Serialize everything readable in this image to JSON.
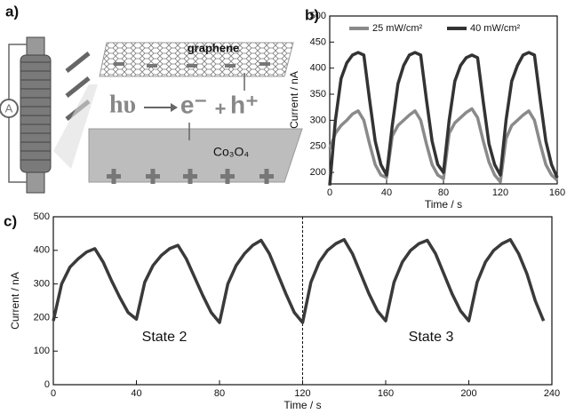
{
  "diagram": {
    "label": "a)",
    "ammeter": "A",
    "sheet": "graphene",
    "photon": "hυ",
    "electron": "e⁻",
    "plus": "+",
    "hole": "h⁺",
    "substrate": "Co₃O₄"
  },
  "chart_data": [
    {
      "type": "line",
      "label": "b)",
      "xlabel": "Time / s",
      "ylabel": "Current / nA",
      "xlim": [
        0,
        160
      ],
      "xticks": [
        0,
        40,
        80,
        120,
        160
      ],
      "ylim": [
        178,
        500
      ],
      "yticks": [
        200,
        250,
        300,
        350,
        400,
        450,
        500
      ],
      "x": [
        0,
        4,
        8,
        12,
        16,
        20,
        24,
        28,
        32,
        36,
        40,
        44,
        48,
        52,
        56,
        60,
        64,
        68,
        72,
        76,
        80,
        84,
        88,
        92,
        96,
        100,
        104,
        108,
        112,
        116,
        120,
        124,
        128,
        132,
        136,
        140,
        144,
        148,
        152,
        156,
        160
      ],
      "series": [
        {
          "name": "25 mW/cm²",
          "color": "#8a8a8a",
          "values": [
            245,
            275,
            290,
            300,
            312,
            318,
            300,
            255,
            215,
            195,
            190,
            270,
            290,
            300,
            310,
            318,
            300,
            255,
            215,
            195,
            188,
            275,
            295,
            305,
            315,
            322,
            305,
            260,
            220,
            195,
            182,
            265,
            290,
            300,
            310,
            318,
            300,
            255,
            215,
            195,
            185
          ]
        },
        {
          "name": "40 mW/cm²",
          "color": "#333333",
          "values": [
            175,
            300,
            380,
            410,
            425,
            430,
            425,
            340,
            260,
            215,
            195,
            290,
            370,
            405,
            425,
            430,
            425,
            340,
            260,
            215,
            200,
            300,
            375,
            405,
            420,
            425,
            420,
            335,
            255,
            215,
            195,
            300,
            375,
            405,
            425,
            430,
            425,
            340,
            260,
            215,
            190
          ]
        }
      ]
    },
    {
      "type": "line",
      "label": "c)",
      "xlabel": "Time / s",
      "ylabel": "Current / nA",
      "xlim": [
        0,
        240
      ],
      "xticks": [
        0,
        40,
        80,
        120,
        160,
        200,
        240
      ],
      "ylim": [
        0,
        500
      ],
      "yticks": [
        0,
        100,
        200,
        300,
        400,
        500
      ],
      "vline": 120,
      "annotations": [
        "State 2",
        "State 3"
      ],
      "x": [
        0,
        4,
        8,
        12,
        16,
        20,
        24,
        28,
        32,
        36,
        40,
        44,
        48,
        52,
        56,
        60,
        64,
        68,
        72,
        76,
        80,
        84,
        88,
        92,
        96,
        100,
        104,
        108,
        112,
        116,
        120,
        124,
        128,
        132,
        136,
        140,
        144,
        148,
        152,
        156,
        160,
        164,
        168,
        172,
        176,
        180,
        184,
        188,
        192,
        196,
        200,
        204,
        208,
        212,
        216,
        220,
        224,
        228,
        232,
        236
      ],
      "series": [
        {
          "color": "#3a3a3a",
          "values": [
            190,
            300,
            350,
            375,
            395,
            405,
            365,
            310,
            260,
            215,
            195,
            305,
            355,
            385,
            405,
            415,
            375,
            320,
            265,
            215,
            185,
            300,
            355,
            390,
            415,
            430,
            390,
            330,
            270,
            215,
            185,
            305,
            365,
            400,
            420,
            432,
            390,
            330,
            270,
            220,
            190,
            305,
            365,
            400,
            420,
            430,
            390,
            330,
            270,
            220,
            190,
            305,
            365,
            400,
            420,
            432,
            390,
            330,
            250,
            190
          ]
        }
      ]
    }
  ]
}
